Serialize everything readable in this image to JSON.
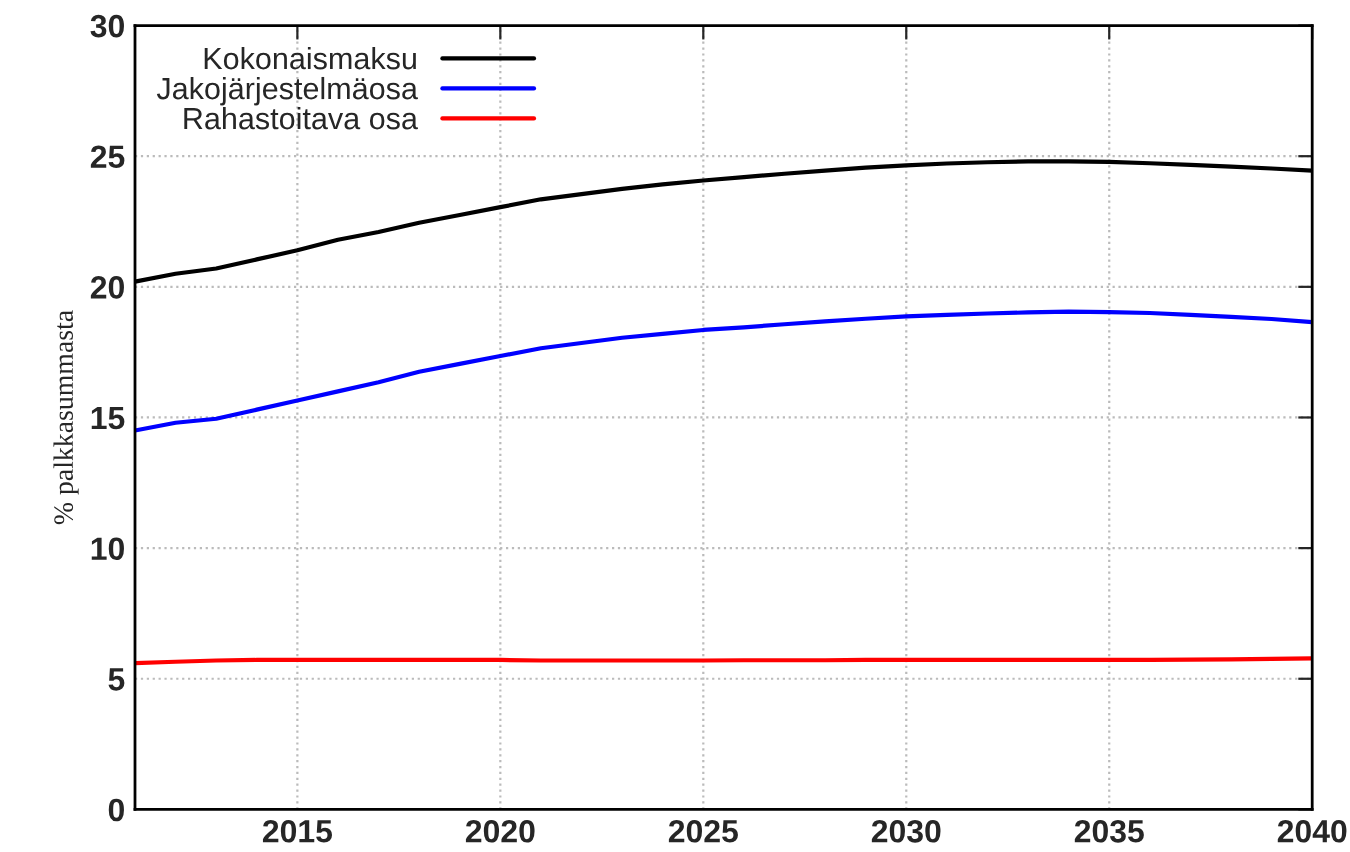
{
  "chart_data": {
    "type": "line",
    "ylabel": "% palkkasummasta",
    "x": [
      2011,
      2012,
      2013,
      2014,
      2015,
      2016,
      2017,
      2018,
      2019,
      2020,
      2021,
      2022,
      2023,
      2024,
      2025,
      2026,
      2027,
      2028,
      2029,
      2030,
      2031,
      2032,
      2033,
      2034,
      2035,
      2036,
      2037,
      2038,
      2039,
      2040
    ],
    "series": [
      {
        "name": "Kokonaismaksu",
        "color": "#000000",
        "values": [
          20.2,
          20.5,
          20.7,
          21.05,
          21.4,
          21.8,
          22.1,
          22.45,
          22.75,
          23.05,
          23.35,
          23.55,
          23.75,
          23.92,
          24.07,
          24.2,
          24.33,
          24.45,
          24.56,
          24.65,
          24.72,
          24.77,
          24.8,
          24.8,
          24.78,
          24.73,
          24.67,
          24.6,
          24.53,
          24.45
        ]
      },
      {
        "name": "Jakojärjestelmäosa",
        "color": "#0000ff",
        "values": [
          14.5,
          14.8,
          14.95,
          15.3,
          15.65,
          16.0,
          16.35,
          16.75,
          17.05,
          17.35,
          17.65,
          17.85,
          18.05,
          18.2,
          18.35,
          18.45,
          18.57,
          18.68,
          18.78,
          18.87,
          18.93,
          18.98,
          19.02,
          19.05,
          19.03,
          19.0,
          18.93,
          18.85,
          18.77,
          18.65
        ]
      },
      {
        "name": "Rahastoitava osa",
        "color": "#ff0000",
        "values": [
          5.6,
          5.65,
          5.7,
          5.72,
          5.72,
          5.72,
          5.72,
          5.72,
          5.72,
          5.72,
          5.7,
          5.7,
          5.7,
          5.7,
          5.7,
          5.71,
          5.71,
          5.71,
          5.72,
          5.72,
          5.72,
          5.72,
          5.72,
          5.72,
          5.72,
          5.72,
          5.73,
          5.74,
          5.76,
          5.78
        ]
      }
    ],
    "xlim": [
      2011,
      2040
    ],
    "xticks": [
      2015,
      2020,
      2025,
      2030,
      2035,
      2040
    ],
    "ylim": [
      0,
      30
    ],
    "yticks": [
      0,
      5,
      10,
      15,
      20,
      25,
      30
    ],
    "grid": true,
    "legend": "top left",
    "line_style": "solid",
    "marker": "none"
  }
}
